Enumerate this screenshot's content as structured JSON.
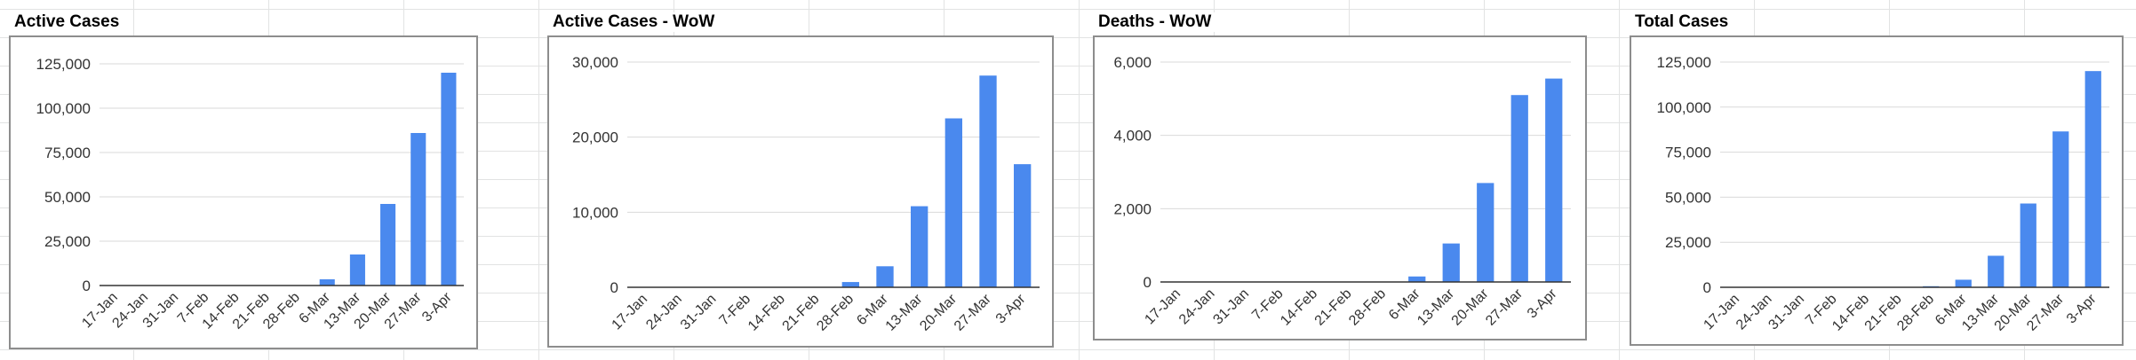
{
  "colors": {
    "bar": "#4a89ee",
    "grid": "#d9d9d9",
    "axis": "#333333",
    "frame": "#8d8d8d"
  },
  "chart_data": [
    {
      "type": "bar",
      "title": "Active Cases",
      "categories": [
        "17-Jan",
        "24-Jan",
        "31-Jan",
        "7-Feb",
        "14-Feb",
        "21-Feb",
        "28-Feb",
        "6-Mar",
        "13-Mar",
        "20-Mar",
        "27-Mar",
        "3-Apr"
      ],
      "values": [
        0,
        0,
        0,
        0,
        0,
        0,
        100,
        3500,
        17500,
        46000,
        86000,
        120000
      ],
      "yticks": [
        0,
        25000,
        50000,
        75000,
        100000,
        125000
      ],
      "ytick_labels": [
        "0",
        "25,000",
        "50,000",
        "75,000",
        "100,000",
        "125,000"
      ],
      "ylim": [
        0,
        125000
      ],
      "xlabel": "",
      "ylabel": "",
      "grid": true
    },
    {
      "type": "bar",
      "title": "Active Cases - WoW",
      "categories": [
        "17-Jan",
        "24-Jan",
        "31-Jan",
        "7-Feb",
        "14-Feb",
        "21-Feb",
        "28-Feb",
        "6-Mar",
        "13-Mar",
        "20-Mar",
        "27-Mar",
        "3-Apr"
      ],
      "values": [
        0,
        0,
        0,
        0,
        0,
        0,
        700,
        2800,
        10800,
        22500,
        28200,
        16400
      ],
      "yticks": [
        0,
        10000,
        20000,
        30000
      ],
      "ytick_labels": [
        "0",
        "10,000",
        "20,000",
        "30,000"
      ],
      "ylim": [
        0,
        30000
      ],
      "xlabel": "",
      "ylabel": "",
      "grid": true
    },
    {
      "type": "bar",
      "title": "Deaths - WoW",
      "categories": [
        "17-Jan",
        "24-Jan",
        "31-Jan",
        "7-Feb",
        "14-Feb",
        "21-Feb",
        "28-Feb",
        "6-Mar",
        "13-Mar",
        "20-Mar",
        "27-Mar",
        "3-Apr"
      ],
      "values": [
        0,
        0,
        0,
        0,
        0,
        0,
        10,
        150,
        1050,
        2700,
        5100,
        5550
      ],
      "yticks": [
        0,
        2000,
        4000,
        6000
      ],
      "ytick_labels": [
        "0",
        "2,000",
        "4,000",
        "6,000"
      ],
      "ylim": [
        0,
        6000
      ],
      "xlabel": "",
      "ylabel": "",
      "grid": true
    },
    {
      "type": "bar",
      "title": "Total Cases",
      "categories": [
        "17-Jan",
        "24-Jan",
        "31-Jan",
        "7-Feb",
        "14-Feb",
        "21-Feb",
        "28-Feb",
        "6-Mar",
        "13-Mar",
        "20-Mar",
        "27-Mar",
        "3-Apr"
      ],
      "values": [
        0,
        0,
        0,
        0,
        0,
        0,
        600,
        4200,
        17500,
        46500,
        86500,
        120000
      ],
      "yticks": [
        0,
        25000,
        50000,
        75000,
        100000,
        125000
      ],
      "ytick_labels": [
        "0",
        "25,000",
        "50,000",
        "75,000",
        "100,000",
        "125,000"
      ],
      "ylim": [
        0,
        125000
      ],
      "xlabel": "",
      "ylabel": "",
      "grid": true
    }
  ]
}
